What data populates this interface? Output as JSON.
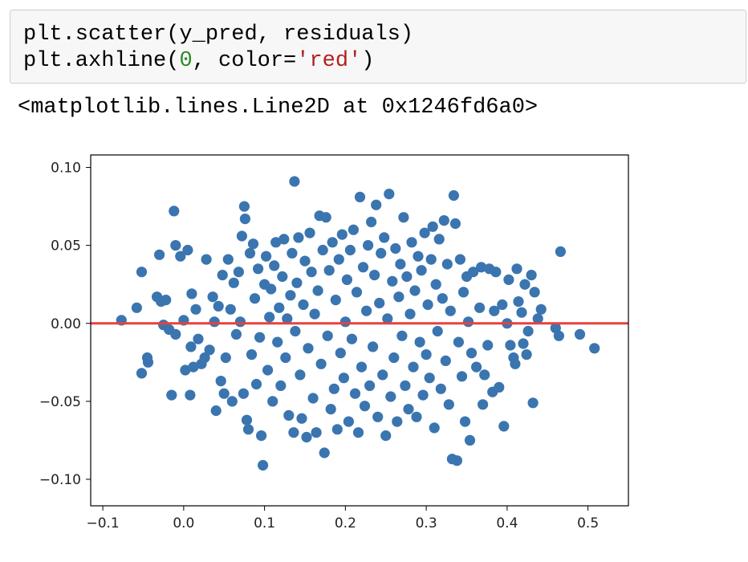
{
  "code_cell": {
    "line1": "plt.scatter(y_pred, residuals)",
    "line2_prefix": "plt.axhline(",
    "line2_number": "0",
    "line2_mid": ", color=",
    "line2_string": "'red'",
    "line2_suffix": ")"
  },
  "output": {
    "text": "<matplotlib.lines.Line2D at 0x1246fd6a0>"
  },
  "colors": {
    "points": "#3a75b0",
    "hline": "#e8413c"
  },
  "chart_data": {
    "type": "scatter",
    "xlim": [
      -0.115,
      0.55
    ],
    "ylim": [
      -0.117,
      0.108
    ],
    "xticks": [
      -0.1,
      0.0,
      0.1,
      0.2,
      0.3,
      0.4,
      0.5
    ],
    "xtick_labels": [
      "−0.1",
      "0.0",
      "0.1",
      "0.2",
      "0.3",
      "0.4",
      "0.5"
    ],
    "yticks": [
      -0.1,
      -0.05,
      0.0,
      0.05,
      0.1
    ],
    "ytick_labels": [
      "−0.10",
      "−0.05",
      "0.00",
      "0.05",
      "0.10"
    ],
    "hline_y": 0,
    "grid": false,
    "points": [
      [
        -0.077,
        0.002
      ],
      [
        -0.058,
        0.01
      ],
      [
        -0.052,
        0.033
      ],
      [
        -0.052,
        -0.032
      ],
      [
        -0.045,
        -0.022
      ],
      [
        -0.044,
        -0.025
      ],
      [
        -0.033,
        0.017
      ],
      [
        -0.03,
        0.044
      ],
      [
        -0.028,
        0.014
      ],
      [
        -0.025,
        -0.001
      ],
      [
        -0.022,
        0.015
      ],
      [
        -0.018,
        -0.004
      ],
      [
        -0.015,
        -0.046
      ],
      [
        -0.012,
        0.072
      ],
      [
        -0.01,
        -0.007
      ],
      [
        -0.01,
        0.05
      ],
      [
        -0.004,
        0.043
      ],
      [
        0.0,
        0.002
      ],
      [
        0.002,
        -0.03
      ],
      [
        0.005,
        0.047
      ],
      [
        0.008,
        -0.046
      ],
      [
        0.009,
        -0.015
      ],
      [
        0.01,
        0.019
      ],
      [
        0.012,
        -0.028
      ],
      [
        0.015,
        0.009
      ],
      [
        0.018,
        -0.01
      ],
      [
        0.022,
        -0.026
      ],
      [
        0.026,
        -0.022
      ],
      [
        0.028,
        0.041
      ],
      [
        0.032,
        -0.017
      ],
      [
        0.036,
        0.017
      ],
      [
        0.038,
        0.001
      ],
      [
        0.04,
        -0.056
      ],
      [
        0.043,
        0.011
      ],
      [
        0.046,
        -0.037
      ],
      [
        0.048,
        0.031
      ],
      [
        0.05,
        -0.045
      ],
      [
        0.052,
        -0.022
      ],
      [
        0.055,
        0.041
      ],
      [
        0.058,
        0.009
      ],
      [
        0.06,
        -0.05
      ],
      [
        0.062,
        0.026
      ],
      [
        0.065,
        -0.007
      ],
      [
        0.068,
        0.033
      ],
      [
        0.07,
        0.001
      ],
      [
        0.072,
        0.056
      ],
      [
        0.074,
        -0.045
      ],
      [
        0.075,
        0.075
      ],
      [
        0.076,
        0.067
      ],
      [
        0.078,
        -0.062
      ],
      [
        0.08,
        -0.068
      ],
      [
        0.082,
        0.045
      ],
      [
        0.084,
        -0.02
      ],
      [
        0.086,
        0.051
      ],
      [
        0.088,
        0.016
      ],
      [
        0.09,
        -0.039
      ],
      [
        0.092,
        0.035
      ],
      [
        0.094,
        -0.009
      ],
      [
        0.096,
        -0.072
      ],
      [
        0.098,
        -0.091
      ],
      [
        0.1,
        0.025
      ],
      [
        0.102,
        0.043
      ],
      [
        0.104,
        -0.03
      ],
      [
        0.106,
        0.004
      ],
      [
        0.108,
        0.022
      ],
      [
        0.11,
        -0.05
      ],
      [
        0.112,
        0.037
      ],
      [
        0.114,
        0.052
      ],
      [
        0.116,
        -0.012
      ],
      [
        0.118,
        0.01
      ],
      [
        0.12,
        -0.04
      ],
      [
        0.122,
        0.03
      ],
      [
        0.124,
        0.054
      ],
      [
        0.126,
        -0.022
      ],
      [
        0.128,
        0.003
      ],
      [
        0.13,
        -0.059
      ],
      [
        0.132,
        0.018
      ],
      [
        0.134,
        0.045
      ],
      [
        0.136,
        -0.07
      ],
      [
        0.137,
        0.091
      ],
      [
        0.138,
        -0.005
      ],
      [
        0.14,
        0.026
      ],
      [
        0.142,
        0.055
      ],
      [
        0.144,
        -0.033
      ],
      [
        0.146,
        -0.061
      ],
      [
        0.148,
        0.012
      ],
      [
        0.15,
        0.04
      ],
      [
        0.152,
        -0.073
      ],
      [
        0.154,
        -0.016
      ],
      [
        0.156,
        0.058
      ],
      [
        0.158,
        0.033
      ],
      [
        0.16,
        -0.048
      ],
      [
        0.162,
        0.006
      ],
      [
        0.164,
        -0.07
      ],
      [
        0.166,
        0.021
      ],
      [
        0.168,
        0.069
      ],
      [
        0.17,
        -0.026
      ],
      [
        0.172,
        0.047
      ],
      [
        0.174,
        -0.083
      ],
      [
        0.176,
        0.068
      ],
      [
        0.178,
        -0.008
      ],
      [
        0.18,
        0.034
      ],
      [
        0.182,
        -0.055
      ],
      [
        0.184,
        0.052
      ],
      [
        0.186,
        -0.042
      ],
      [
        0.188,
        0.015
      ],
      [
        0.19,
        -0.068
      ],
      [
        0.192,
        0.041
      ],
      [
        0.194,
        -0.019
      ],
      [
        0.196,
        0.057
      ],
      [
        0.198,
        -0.035
      ],
      [
        0.2,
        0.001
      ],
      [
        0.202,
        0.028
      ],
      [
        0.204,
        -0.063
      ],
      [
        0.206,
        0.047
      ],
      [
        0.208,
        -0.01
      ],
      [
        0.21,
        0.06
      ],
      [
        0.212,
        -0.045
      ],
      [
        0.214,
        0.02
      ],
      [
        0.216,
        -0.07
      ],
      [
        0.218,
        0.081
      ],
      [
        0.22,
        -0.028
      ],
      [
        0.222,
        0.036
      ],
      [
        0.224,
        -0.053
      ],
      [
        0.226,
        0.008
      ],
      [
        0.228,
        0.05
      ],
      [
        0.23,
        -0.04
      ],
      [
        0.232,
        0.065
      ],
      [
        0.234,
        -0.015
      ],
      [
        0.236,
        0.031
      ],
      [
        0.238,
        0.076
      ],
      [
        0.24,
        -0.06
      ],
      [
        0.242,
        0.013
      ],
      [
        0.244,
        0.045
      ],
      [
        0.246,
        -0.033
      ],
      [
        0.248,
        0.055
      ],
      [
        0.25,
        -0.072
      ],
      [
        0.252,
        0.003
      ],
      [
        0.254,
        0.083
      ],
      [
        0.256,
        -0.047
      ],
      [
        0.258,
        0.027
      ],
      [
        0.26,
        -0.022
      ],
      [
        0.262,
        0.048
      ],
      [
        0.264,
        -0.063
      ],
      [
        0.266,
        0.017
      ],
      [
        0.268,
        0.038
      ],
      [
        0.27,
        -0.008
      ],
      [
        0.272,
        0.068
      ],
      [
        0.274,
        -0.04
      ],
      [
        0.276,
        0.03
      ],
      [
        0.278,
        -0.055
      ],
      [
        0.28,
        0.006
      ],
      [
        0.282,
        0.052
      ],
      [
        0.284,
        -0.028
      ],
      [
        0.286,
        0.021
      ],
      [
        0.288,
        -0.06
      ],
      [
        0.29,
        0.043
      ],
      [
        0.292,
        -0.012
      ],
      [
        0.294,
        0.034
      ],
      [
        0.296,
        -0.046
      ],
      [
        0.298,
        0.058
      ],
      [
        0.3,
        -0.02
      ],
      [
        0.302,
        0.012
      ],
      [
        0.304,
        -0.035
      ],
      [
        0.306,
        0.041
      ],
      [
        0.308,
        0.062
      ],
      [
        0.31,
        -0.067
      ],
      [
        0.312,
        0.025
      ],
      [
        0.314,
        -0.005
      ],
      [
        0.316,
        0.054
      ],
      [
        0.318,
        -0.042
      ],
      [
        0.32,
        0.016
      ],
      [
        0.322,
        0.066
      ],
      [
        0.324,
        -0.024
      ],
      [
        0.326,
        0.038
      ],
      [
        0.328,
        -0.052
      ],
      [
        0.33,
        0.008
      ],
      [
        0.332,
        -0.087
      ],
      [
        0.334,
        0.082
      ],
      [
        0.336,
        0.064
      ],
      [
        0.338,
        -0.088
      ],
      [
        0.34,
        -0.012
      ],
      [
        0.342,
        0.041
      ],
      [
        0.344,
        -0.034
      ],
      [
        0.346,
        0.02
      ],
      [
        0.348,
        -0.063
      ],
      [
        0.35,
        0.03
      ],
      [
        0.352,
        0.001
      ],
      [
        0.354,
        -0.075
      ],
      [
        0.356,
        -0.019
      ],
      [
        0.358,
        0.033
      ],
      [
        0.362,
        -0.028
      ],
      [
        0.366,
        0.01
      ],
      [
        0.368,
        0.036
      ],
      [
        0.37,
        -0.052
      ],
      [
        0.372,
        -0.033
      ],
      [
        0.376,
        -0.014
      ],
      [
        0.378,
        0.035
      ],
      [
        0.382,
        -0.044
      ],
      [
        0.384,
        0.008
      ],
      [
        0.386,
        0.033
      ],
      [
        0.39,
        -0.041
      ],
      [
        0.394,
        0.012
      ],
      [
        0.396,
        -0.066
      ],
      [
        0.4,
        0.0
      ],
      [
        0.402,
        0.028
      ],
      [
        0.404,
        -0.014
      ],
      [
        0.408,
        -0.022
      ],
      [
        0.41,
        -0.026
      ],
      [
        0.412,
        0.035
      ],
      [
        0.414,
        0.014
      ],
      [
        0.418,
        0.007
      ],
      [
        0.42,
        -0.013
      ],
      [
        0.422,
        0.025
      ],
      [
        0.424,
        -0.02
      ],
      [
        0.426,
        -0.005
      ],
      [
        0.43,
        0.031
      ],
      [
        0.432,
        -0.051
      ],
      [
        0.434,
        0.02
      ],
      [
        0.438,
        0.003
      ],
      [
        0.442,
        0.009
      ],
      [
        0.46,
        -0.003
      ],
      [
        0.464,
        -0.008
      ],
      [
        0.466,
        0.046
      ],
      [
        0.49,
        -0.007
      ],
      [
        0.508,
        -0.016
      ]
    ]
  }
}
